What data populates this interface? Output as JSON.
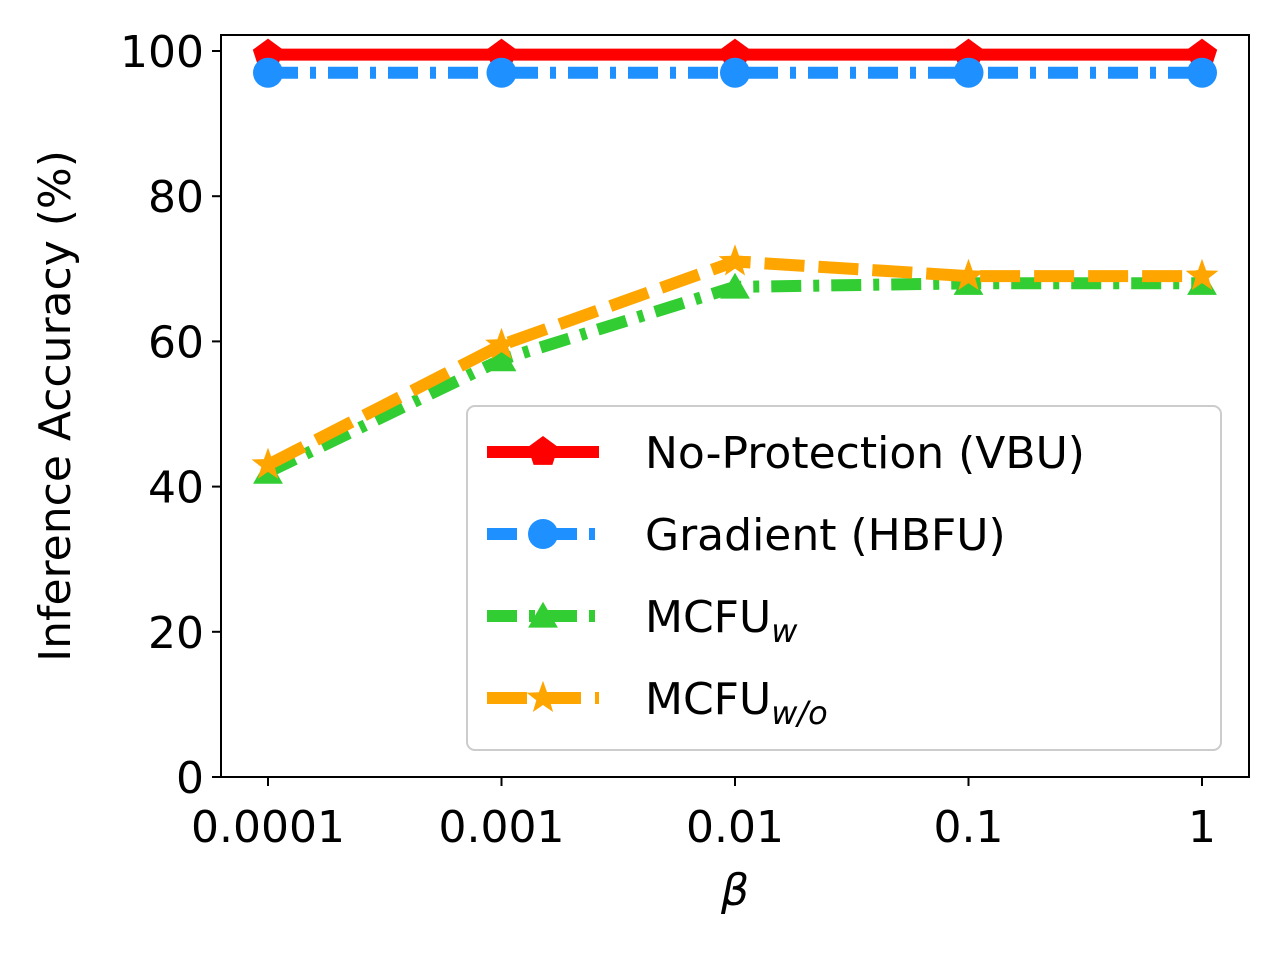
{
  "chart_data": {
    "type": "line",
    "title": "",
    "xlabel": "β",
    "ylabel": "Inference Accuracy (%)",
    "x": [
      "0.0001",
      "0.001",
      "0.01",
      "0.1",
      "1"
    ],
    "x_scale": "log",
    "ylim": [
      0,
      102
    ],
    "yticks": [
      "0",
      "20",
      "40",
      "60",
      "80",
      "100"
    ],
    "grid": false,
    "legend_position": "lower-right",
    "series": [
      {
        "name": "No-Protection (VBU)",
        "name_main": "No-Protection (VBU)",
        "name_sub": "",
        "values": [
          99.5,
          99.5,
          99.5,
          99.5,
          99.5
        ],
        "color": "#ff0000",
        "linestyle": "solid",
        "marker": "pentagon"
      },
      {
        "name": "Gradient (HBFU)",
        "name_main": "Gradient (HBFU)",
        "name_sub": "",
        "values": [
          97.0,
          97.0,
          97.0,
          97.0,
          97.0
        ],
        "color": "#1e90ff",
        "linestyle": "dashdot",
        "marker": "circle"
      },
      {
        "name": "MCFUw",
        "name_main": "MCFU",
        "name_sub": "w",
        "values": [
          42.0,
          57.5,
          67.5,
          68.0,
          68.0
        ],
        "color": "#32cd32",
        "linestyle": "dashdot",
        "marker": "triangle"
      },
      {
        "name": "MCFUw/o",
        "name_main": "MCFU",
        "name_sub": "w/o",
        "values": [
          43.0,
          59.5,
          71.0,
          69.0,
          69.0
        ],
        "color": "#ffa500",
        "linestyle": "dashed",
        "marker": "star"
      }
    ]
  }
}
